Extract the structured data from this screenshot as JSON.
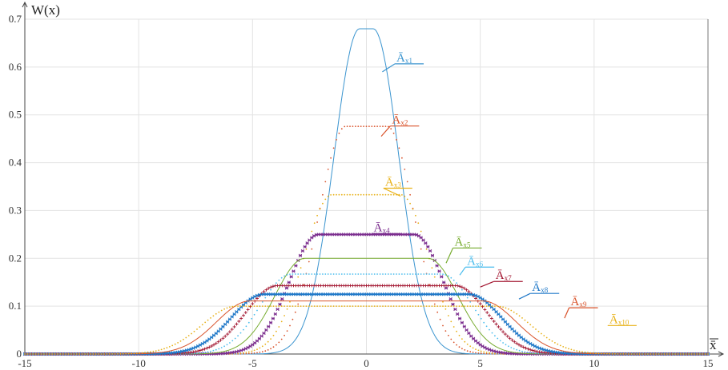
{
  "chart_data": {
    "type": "line",
    "title": "",
    "ylabel": "W(x)",
    "xlabel": "x̄",
    "xlim": [
      -15,
      15
    ],
    "ylim": [
      0,
      0.7
    ],
    "xticks": [
      -15,
      -10,
      -5,
      0,
      5,
      10,
      15
    ],
    "yticks": [
      0,
      0.1,
      0.2,
      0.3,
      0.4,
      0.5,
      0.6,
      0.7
    ],
    "xtick_labels": [
      "-15",
      "-10",
      "-5",
      "0",
      "5",
      "10",
      "15"
    ],
    "ytick_labels": [
      "0",
      "0.1",
      "0.2",
      "0.3",
      "0.4",
      "0.5",
      "0.6",
      "0.7"
    ],
    "grid": true,
    "legend": "none",
    "series": [
      {
        "label": "Āx1",
        "peak": 0.68,
        "half_width": 0.3,
        "edge": 2.9,
        "color": "#3a94cf",
        "marker": "line"
      },
      {
        "label": "Āx2",
        "peak": 0.476,
        "half_width": 0.9,
        "edge": 3.1,
        "color": "#d9532b",
        "marker": "dot"
      },
      {
        "label": "Āx3",
        "peak": 0.333,
        "half_width": 1.5,
        "edge": 3.2,
        "color": "#e8b21a",
        "marker": "dot"
      },
      {
        "label": "Āx4",
        "peak": 0.25,
        "half_width": 2.1,
        "edge": 3.3,
        "color": "#7b2d8e",
        "marker": "star"
      },
      {
        "label": "Āx5",
        "peak": 0.2,
        "half_width": 2.7,
        "edge": 3.4,
        "color": "#77ac30",
        "marker": "line"
      },
      {
        "label": "Āx6",
        "peak": 0.167,
        "half_width": 3.3,
        "edge": 3.5,
        "color": "#4dbeee",
        "marker": "dot"
      },
      {
        "label": "Āx7",
        "peak": 0.143,
        "half_width": 3.9,
        "edge": 3.6,
        "color": "#a2142f",
        "marker": "plus"
      },
      {
        "label": "Āx8",
        "peak": 0.125,
        "half_width": 4.5,
        "edge": 3.7,
        "color": "#1f78c8",
        "marker": "star"
      },
      {
        "label": "Āx9",
        "peak": 0.111,
        "half_width": 5.1,
        "edge": 3.8,
        "color": "#d9532b",
        "marker": "line"
      },
      {
        "label": "Āx10",
        "peak": 0.1,
        "half_width": 5.7,
        "edge": 3.9,
        "color": "#e8b21a",
        "marker": "dot"
      }
    ],
    "annotations": [
      {
        "series": 0,
        "text": "Ā",
        "sub": "x1",
        "at_x": 0.7,
        "at_y": 0.59,
        "lx": 1.25,
        "ly": 0.61
      },
      {
        "series": 1,
        "text": "Ā",
        "sub": "x2",
        "at_x": 0.65,
        "at_y": 0.455,
        "lx": 1.05,
        "ly": 0.48
      },
      {
        "series": 2,
        "text": "Ā",
        "sub": "x3",
        "at_x": 1.5,
        "at_y": 0.33,
        "lx": 0.75,
        "ly": 0.35
      },
      {
        "series": 3,
        "text": "Ā",
        "sub": "x4",
        "at_x": 1.2,
        "at_y": 0.25,
        "lx": 0.25,
        "ly": 0.255
      },
      {
        "series": 4,
        "text": "Ā",
        "sub": "x5",
        "at_x": 3.5,
        "at_y": 0.19,
        "lx": 3.8,
        "ly": 0.225
      },
      {
        "series": 5,
        "text": "Ā",
        "sub": "x6",
        "at_x": 4.1,
        "at_y": 0.165,
        "lx": 4.35,
        "ly": 0.185
      },
      {
        "series": 6,
        "text": "Ā",
        "sub": "x7",
        "at_x": 5.0,
        "at_y": 0.14,
        "lx": 5.6,
        "ly": 0.155
      },
      {
        "series": 7,
        "text": "Ā",
        "sub": "x8",
        "at_x": 6.7,
        "at_y": 0.115,
        "lx": 7.2,
        "ly": 0.13
      },
      {
        "series": 8,
        "text": "Ā",
        "sub": "x9",
        "at_x": 8.7,
        "at_y": 0.075,
        "lx": 8.9,
        "ly": 0.1
      },
      {
        "series": 9,
        "text": "Ā",
        "sub": "x10",
        "at_x": 10.6,
        "at_y": 0.06,
        "lx": 10.6,
        "ly": 0.063
      }
    ]
  }
}
